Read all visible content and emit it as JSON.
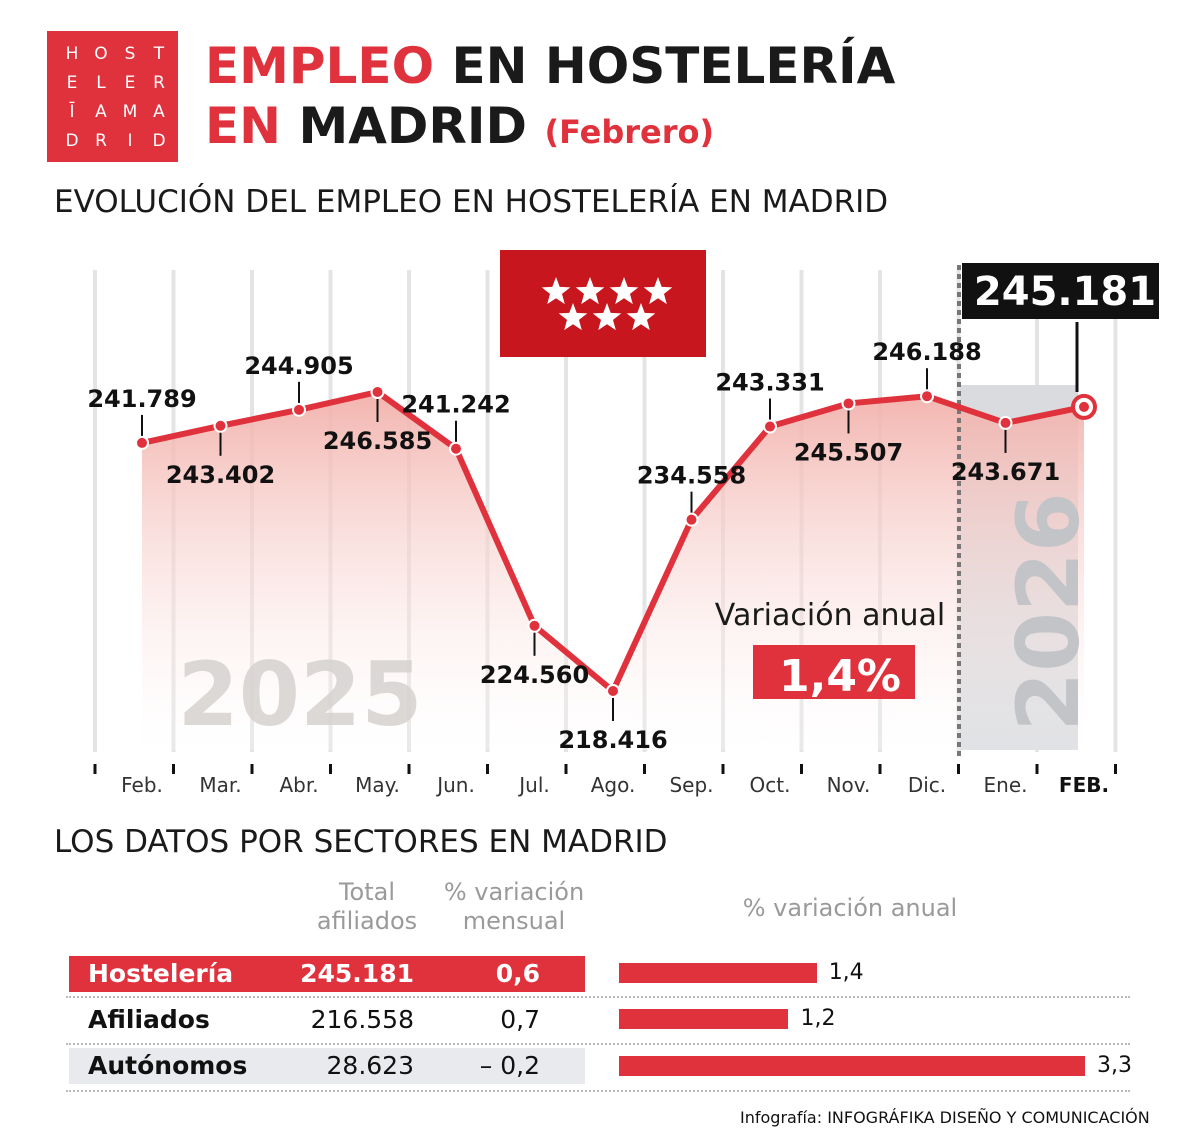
{
  "logo": {
    "rows": [
      [
        "H",
        "O",
        "S",
        "T"
      ],
      [
        "E",
        "L",
        "E",
        "R"
      ],
      [
        "Ī",
        "A",
        "M",
        "A"
      ],
      [
        "D",
        "R",
        "I",
        "D"
      ]
    ]
  },
  "title": {
    "w1": "EMPLEO",
    "w2": "EN HOSTELERÍA",
    "w3": "EN",
    "w4": "MADRID",
    "w5": "(Febrero)"
  },
  "section1": "EVOLUCIÓN DEL EMPLEO EN HOSTELERÍA EN MADRID",
  "section2": "LOS DATOS POR SECTORES EN MADRID",
  "colors": {
    "accent": "#e0323c",
    "dark": "#111111",
    "grey": "#9a9a9a"
  },
  "chart_data": {
    "type": "line",
    "categories": [
      "Feb.",
      "Mar.",
      "Abr.",
      "May.",
      "Jun.",
      "Jul.",
      "Ago.",
      "Sep.",
      "Oct.",
      "Nov.",
      "Dic.",
      "Ene.",
      "FEB."
    ],
    "values": [
      241.789,
      243.402,
      244.905,
      246.585,
      241.242,
      224.56,
      218.416,
      234.558,
      243.331,
      245.507,
      246.188,
      243.671,
      245.181
    ],
    "value_labels": [
      "241.789",
      "243.402",
      "244.905",
      "246.585",
      "241.242",
      "224.560",
      "218.416",
      "234.558",
      "243.331",
      "245.507",
      "246.188",
      "243.671",
      "245.181"
    ],
    "year_labels": [
      "2025",
      "2026"
    ],
    "highlight_label": "245.181",
    "variation_label": "Variación anual",
    "variation_value": "1,4%",
    "flag_icon": "madrid-flag-seven-stars",
    "grid": true
  },
  "sectors": {
    "headers": {
      "total_l1": "Total",
      "total_l2": "afiliados",
      "mensual_l1": "% variación",
      "mensual_l2": "mensual",
      "anual": "% variación anual"
    },
    "rows": [
      {
        "label": "Hostelería",
        "total": "245.181",
        "mensual": "0,6",
        "anual": "1,4",
        "anual_value": 1.4
      },
      {
        "label": "Afiliados",
        "total": "216.558",
        "mensual": "0,7",
        "anual": "1,2",
        "anual_value": 1.2
      },
      {
        "label": "Autónomos",
        "total": "28.623",
        "mensual": "– 0,2",
        "anual": "3,3",
        "anual_value": 3.3
      }
    ]
  },
  "credit": {
    "prefix": "Infografía: ",
    "name": "INFOGRÁFIKA DISEÑO Y COMUNICACIÓN"
  }
}
